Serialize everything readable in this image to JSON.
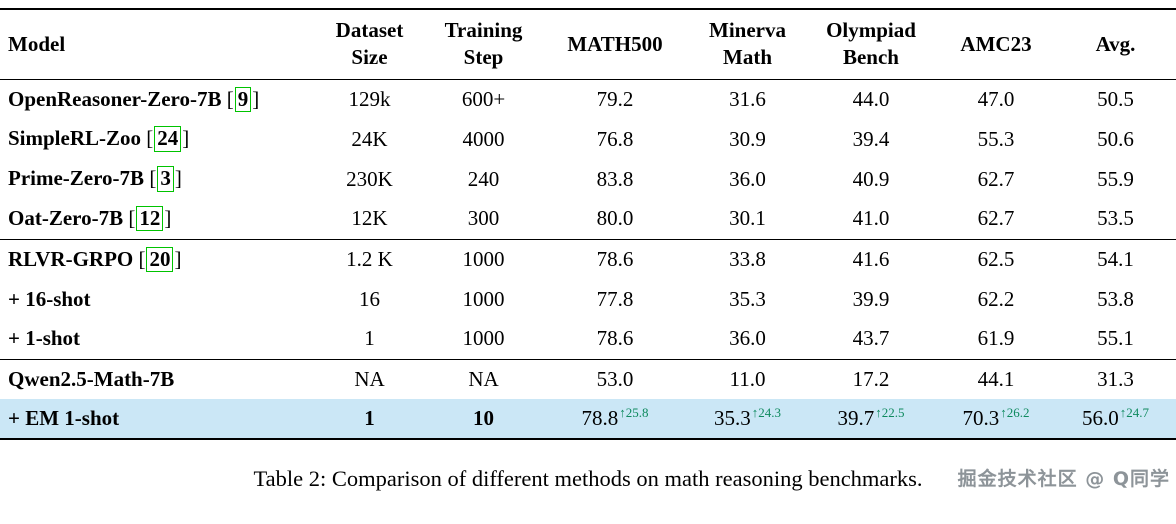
{
  "table": {
    "columns": [
      "Model",
      "Dataset\nSize",
      "Training\nStep",
      "MATH500",
      "Minerva\nMath",
      "Olympiad\nBench",
      "AMC23",
      "Avg."
    ],
    "groups": [
      {
        "name": "zero-rl-baselines",
        "rows": [
          {
            "model": "OpenReasoner-Zero-7B",
            "cite": "9",
            "cells": [
              "129k",
              "600+",
              "79.2",
              "31.6",
              "44.0",
              "47.0",
              "50.5"
            ]
          },
          {
            "model": "SimpleRL-Zoo",
            "cite": "24",
            "cells": [
              "24K",
              "4000",
              "76.8",
              "30.9",
              "39.4",
              "55.3",
              "50.6"
            ]
          },
          {
            "model": "Prime-Zero-7B",
            "cite": "3",
            "cells": [
              "230K",
              "240",
              "83.8",
              "36.0",
              "40.9",
              "62.7",
              "55.9"
            ]
          },
          {
            "model": "Oat-Zero-7B",
            "cite": "12",
            "cells": [
              "12K",
              "300",
              "80.0",
              "30.1",
              "41.0",
              "62.7",
              "53.5"
            ]
          }
        ]
      },
      {
        "name": "rlvr-grpo-variants",
        "rows": [
          {
            "model": "RLVR-GRPO",
            "cite": "20",
            "cells": [
              "1.2 K",
              "1000",
              "78.6",
              "33.8",
              "41.6",
              "62.5",
              "54.1"
            ]
          },
          {
            "model": "+ 16-shot",
            "cells": [
              "16",
              "1000",
              "77.8",
              "35.3",
              "39.9",
              "62.2",
              "53.8"
            ]
          },
          {
            "model": "+ 1-shot",
            "cells": [
              "1",
              "1000",
              "78.6",
              "36.0",
              "43.7",
              "61.9",
              "55.1"
            ]
          }
        ]
      },
      {
        "name": "qwen-em",
        "rows": [
          {
            "model": "Qwen2.5-Math-7B",
            "cells": [
              "NA",
              "NA",
              "53.0",
              "11.0",
              "17.2",
              "44.1",
              "31.3"
            ]
          },
          {
            "model": "+ EM 1-shot",
            "highlight": true,
            "bold_cells": [
              0,
              1
            ],
            "cells": [
              "1",
              "10",
              "78.8",
              "35.3",
              "39.7",
              "70.3",
              "56.0"
            ],
            "deltas": [
              null,
              null,
              "↑25.8",
              "↑24.3",
              "↑22.5",
              "↑26.2",
              "↑24.7"
            ]
          }
        ]
      }
    ],
    "highlight_color": "#cbe7f6",
    "citation_box_color": "#00c300",
    "delta_color": "#0f8a5f"
  },
  "caption": "Table 2: Comparison of different methods on math reasoning benchmarks.",
  "watermark": "掘金技术社区 @ Q同学"
}
